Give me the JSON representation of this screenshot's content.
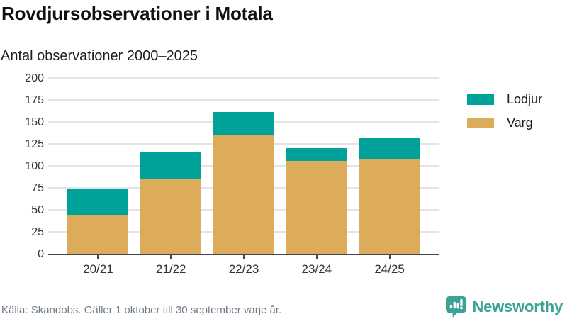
{
  "header": {
    "title": "Rovdjursobservationer i Motala",
    "subtitle": "Antal observationer 2000–2025"
  },
  "chart_data": {
    "type": "bar",
    "stacked": true,
    "categories": [
      "20/21",
      "21/22",
      "22/23",
      "23/24",
      "24/25"
    ],
    "series": [
      {
        "name": "Varg",
        "color": "#dcac5b",
        "values": [
          44,
          85,
          135,
          106,
          108
        ]
      },
      {
        "name": "Lodjur",
        "color": "#00a29a",
        "values": [
          30,
          30,
          26,
          14,
          24
        ]
      }
    ],
    "totals": [
      74,
      115,
      161,
      120,
      132
    ],
    "legend": [
      {
        "label": "Lodjur",
        "color": "#00a29a"
      },
      {
        "label": "Varg",
        "color": "#dcac5b"
      }
    ],
    "legend_position": "right",
    "grid": true,
    "ylim": [
      0,
      200
    ],
    "yticks": [
      0,
      25,
      50,
      75,
      100,
      125,
      150,
      175,
      200
    ],
    "xlabel": "",
    "ylabel": ""
  },
  "footer": {
    "source": "Källa: Skandobs. Gäller 1 oktober till 30 september varje år.",
    "brand": "Newsworthy"
  },
  "colors": {
    "teal": "#00a29a",
    "tan": "#dcac5b",
    "brand": "#3aa296",
    "gridline": "#e4e4e4",
    "axis": "#474747",
    "muted_text": "#6e7b89"
  }
}
